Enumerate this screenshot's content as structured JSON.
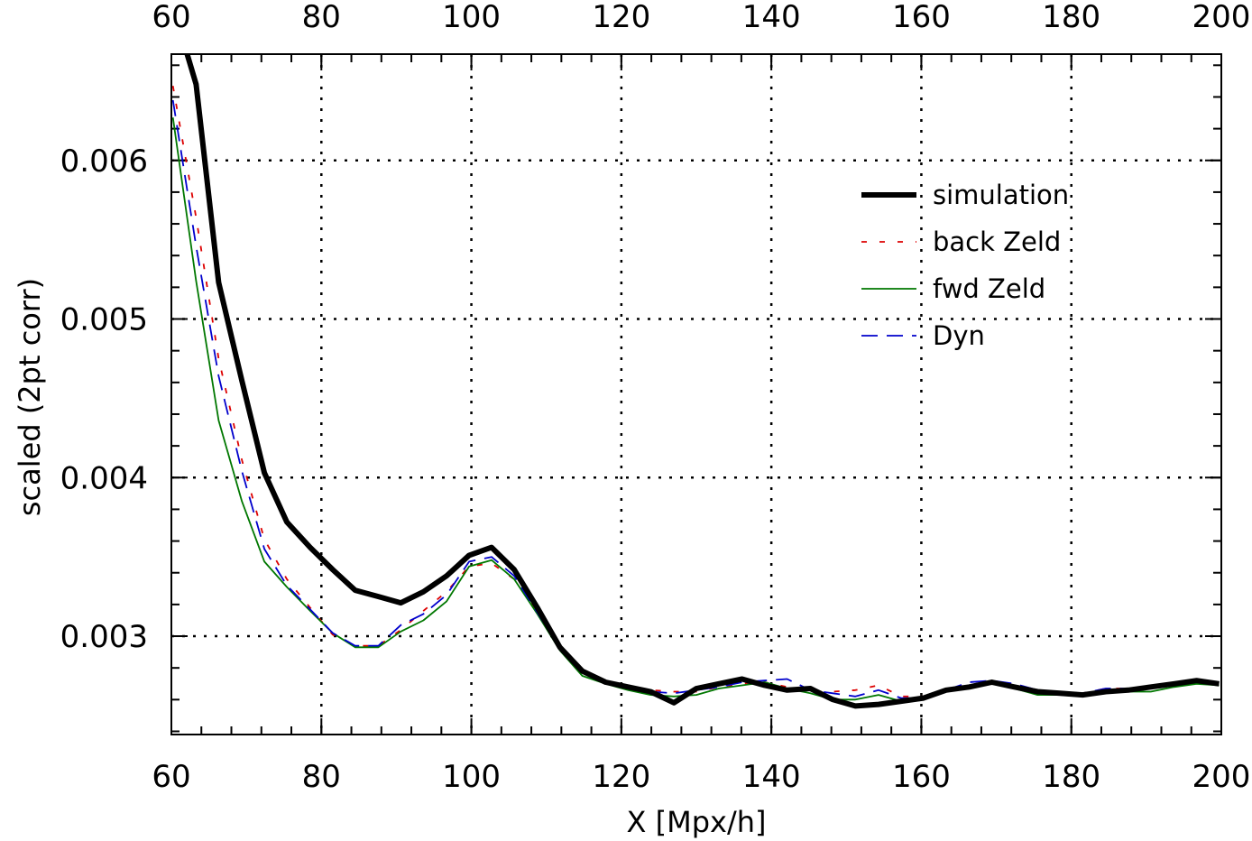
{
  "chart_data": {
    "type": "line",
    "title": "",
    "xlabel": "X [Mpx/h]",
    "ylabel": "scaled   (2pt corr)",
    "xlim": [
      60,
      200
    ],
    "ylim": [
      0.00238,
      0.00667
    ],
    "xticks": [
      60,
      80,
      100,
      120,
      140,
      160,
      180,
      200
    ],
    "xtick_labels": [
      "60",
      "80",
      "100",
      "120",
      "140",
      "160",
      "180",
      "200"
    ],
    "yticks": [
      0.003,
      0.004,
      0.005,
      0.006
    ],
    "ytick_labels": [
      "0.003",
      "0.004",
      "0.005",
      "0.006"
    ],
    "grid": true,
    "top_axis_labels": true,
    "legend_position": "top-right",
    "series": [
      {
        "name": "simulation",
        "color": "#000000",
        "style": "solid-thick",
        "x": [
          62.1,
          63.3,
          66.3,
          69.4,
          72.4,
          75.4,
          78.5,
          81.5,
          84.5,
          87.6,
          90.6,
          93.6,
          96.7,
          99.7,
          102.7,
          105.7,
          108.8,
          111.8,
          114.8,
          117.9,
          120.9,
          123.9,
          127.0,
          130.0,
          133.0,
          136.1,
          139.1,
          142.1,
          145.2,
          148.2,
          151.2,
          154.3,
          157.3,
          160.3,
          163.3,
          166.4,
          169.4,
          172.4,
          175.5,
          178.5,
          181.5,
          184.6,
          187.6,
          190.6,
          193.7,
          196.7,
          199.7
        ],
        "y": [
          0.00667,
          0.00648,
          0.00523,
          0.00461,
          0.00403,
          0.00372,
          0.00356,
          0.00342,
          0.00329,
          0.00325,
          0.00321,
          0.00328,
          0.00338,
          0.00351,
          0.00356,
          0.00342,
          0.00318,
          0.00293,
          0.00278,
          0.00271,
          0.00268,
          0.00265,
          0.00258,
          0.00267,
          0.0027,
          0.00273,
          0.00269,
          0.00266,
          0.00267,
          0.0026,
          0.00256,
          0.00257,
          0.00259,
          0.00261,
          0.00266,
          0.00268,
          0.00271,
          0.00268,
          0.00265,
          0.00264,
          0.00263,
          0.00265,
          0.00266,
          0.00268,
          0.0027,
          0.00272,
          0.0027
        ]
      },
      {
        "name": "back Zeld",
        "color": "#dd0000",
        "style": "dotted",
        "x": [
          60.2,
          63.3,
          66.3,
          69.4,
          72.4,
          75.4,
          78.5,
          81.5,
          84.5,
          87.6,
          90.6,
          93.6,
          96.7,
          99.7,
          102.7,
          105.7,
          108.8,
          111.8,
          114.8,
          117.9,
          120.9,
          123.9,
          127.0,
          130.0,
          133.0,
          136.1,
          139.1,
          142.1,
          145.2,
          148.2,
          151.2,
          154.3,
          157.3,
          160.3,
          163.3,
          166.4,
          169.4,
          172.4,
          175.5,
          178.5,
          181.5,
          184.6,
          187.6,
          190.6,
          193.7,
          196.7,
          199.7
        ],
        "y": [
          0.00647,
          0.00564,
          0.00475,
          0.00411,
          0.00361,
          0.00336,
          0.00318,
          0.00301,
          0.00294,
          0.00294,
          0.00304,
          0.00316,
          0.00328,
          0.00344,
          0.00346,
          0.00336,
          0.00315,
          0.00292,
          0.00277,
          0.0027,
          0.00268,
          0.00266,
          0.00265,
          0.00265,
          0.00268,
          0.0027,
          0.00271,
          0.00268,
          0.00265,
          0.00265,
          0.00266,
          0.00269,
          0.00262,
          0.00262,
          0.00265,
          0.00269,
          0.00272,
          0.00269,
          0.00266,
          0.00265,
          0.00264,
          0.00267,
          0.00267,
          0.00267,
          0.00269,
          0.00271,
          0.0027
        ]
      },
      {
        "name": "fwd Zeld",
        "color": "#007700",
        "style": "solid",
        "x": [
          60.2,
          63.3,
          66.3,
          69.4,
          72.4,
          75.4,
          78.5,
          81.5,
          84.5,
          87.6,
          90.6,
          93.6,
          96.7,
          99.7,
          102.7,
          105.7,
          108.8,
          111.8,
          114.8,
          117.9,
          120.9,
          123.9,
          127.0,
          130.0,
          133.0,
          136.1,
          139.1,
          142.1,
          145.2,
          148.2,
          151.2,
          154.3,
          157.3,
          160.3,
          163.3,
          166.4,
          169.4,
          172.4,
          175.5,
          178.5,
          181.5,
          184.6,
          187.6,
          190.6,
          193.7,
          196.7,
          199.7
        ],
        "y": [
          0.00627,
          0.00524,
          0.00436,
          0.00385,
          0.00347,
          0.00331,
          0.00316,
          0.00302,
          0.00293,
          0.00293,
          0.00303,
          0.0031,
          0.00322,
          0.00344,
          0.00348,
          0.00336,
          0.00314,
          0.00291,
          0.00275,
          0.0027,
          0.00266,
          0.00263,
          0.00262,
          0.00263,
          0.00267,
          0.00269,
          0.00271,
          0.00267,
          0.00264,
          0.0026,
          0.0026,
          0.00263,
          0.00259,
          0.0026,
          0.00266,
          0.00268,
          0.0027,
          0.00267,
          0.00263,
          0.00263,
          0.00262,
          0.00265,
          0.00265,
          0.00265,
          0.00268,
          0.0027,
          0.00269
        ]
      },
      {
        "name": "Dyn",
        "color": "#0000cc",
        "style": "dashed",
        "x": [
          60.2,
          63.3,
          66.3,
          69.4,
          72.4,
          75.4,
          78.5,
          81.5,
          84.5,
          87.6,
          90.6,
          93.6,
          96.7,
          99.7,
          102.7,
          105.7,
          108.8,
          111.8,
          114.8,
          117.9,
          120.9,
          123.9,
          127.0,
          130.0,
          133.0,
          136.1,
          139.1,
          142.1,
          145.2,
          148.2,
          151.2,
          154.3,
          157.3,
          160.3,
          163.3,
          166.4,
          169.4,
          172.4,
          175.5,
          178.5,
          181.5,
          184.6,
          187.6,
          190.6,
          193.7,
          196.7,
          199.7
        ],
        "y": [
          0.00638,
          0.00546,
          0.00464,
          0.00404,
          0.00355,
          0.00332,
          0.00317,
          0.00302,
          0.00294,
          0.00294,
          0.00307,
          0.00314,
          0.00326,
          0.00347,
          0.0035,
          0.00338,
          0.00315,
          0.00292,
          0.00277,
          0.0027,
          0.00268,
          0.00265,
          0.00264,
          0.00266,
          0.00268,
          0.00271,
          0.00272,
          0.00273,
          0.00266,
          0.00264,
          0.00262,
          0.00266,
          0.00261,
          0.00261,
          0.00266,
          0.00271,
          0.00272,
          0.0027,
          0.00266,
          0.00265,
          0.00264,
          0.00267,
          0.00267,
          0.00267,
          0.00269,
          0.00272,
          0.0027
        ]
      }
    ]
  }
}
